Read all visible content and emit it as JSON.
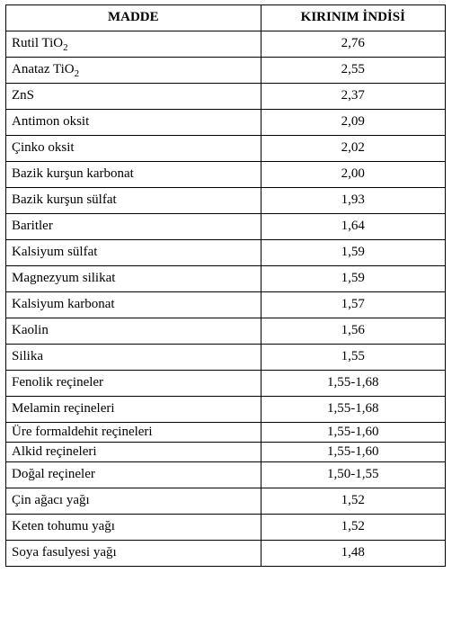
{
  "table": {
    "headers": [
      "MADDE",
      "KIRINIM İNDİSİ"
    ],
    "rows": [
      {
        "name_html": "Rutil TiO<sub>2</sub>",
        "value": "2,76",
        "tight": false
      },
      {
        "name_html": "Anataz TiO<sub>2</sub>",
        "value": "2,55",
        "tight": false
      },
      {
        "name_html": "ZnS",
        "value": "2,37",
        "tight": false
      },
      {
        "name_html": "Antimon oksit",
        "value": "2,09",
        "tight": false
      },
      {
        "name_html": "Çinko oksit",
        "value": "2,02",
        "tight": false
      },
      {
        "name_html": "Bazik kurşun karbonat",
        "value": "2,00",
        "tight": false
      },
      {
        "name_html": "Bazik kurşun sülfat",
        "value": "1,93",
        "tight": false
      },
      {
        "name_html": "Baritler",
        "value": "1,64",
        "tight": false
      },
      {
        "name_html": "Kalsiyum sülfat",
        "value": "1,59",
        "tight": false
      },
      {
        "name_html": "Magnezyum silikat",
        "value": "1,59",
        "tight": false
      },
      {
        "name_html": "Kalsiyum karbonat",
        "value": "1,57",
        "tight": false
      },
      {
        "name_html": "Kaolin",
        "value": "1,56",
        "tight": false
      },
      {
        "name_html": "Silika",
        "value": "1,55",
        "tight": false
      },
      {
        "name_html": "Fenolik reçineler",
        "value": "1,55-1,68",
        "tight": false
      },
      {
        "name_html": "Melamin reçineleri",
        "value": "1,55-1,68",
        "tight": false
      },
      {
        "name_html": "Üre formaldehit reçineleri",
        "value": "1,55-1,60",
        "tight": true
      },
      {
        "name_html": "Alkid reçineleri",
        "value": "1,55-1,60",
        "tight": true
      },
      {
        "name_html": "Doğal reçineler",
        "value": "1,50-1,55",
        "tight": false
      },
      {
        "name_html": "Çin ağacı yağı",
        "value": "1,52",
        "tight": false
      },
      {
        "name_html": "Keten tohumu yağı",
        "value": "1,52",
        "tight": false
      },
      {
        "name_html": "Soya fasulyesi yağı",
        "value": "1,48",
        "tight": false
      }
    ]
  }
}
